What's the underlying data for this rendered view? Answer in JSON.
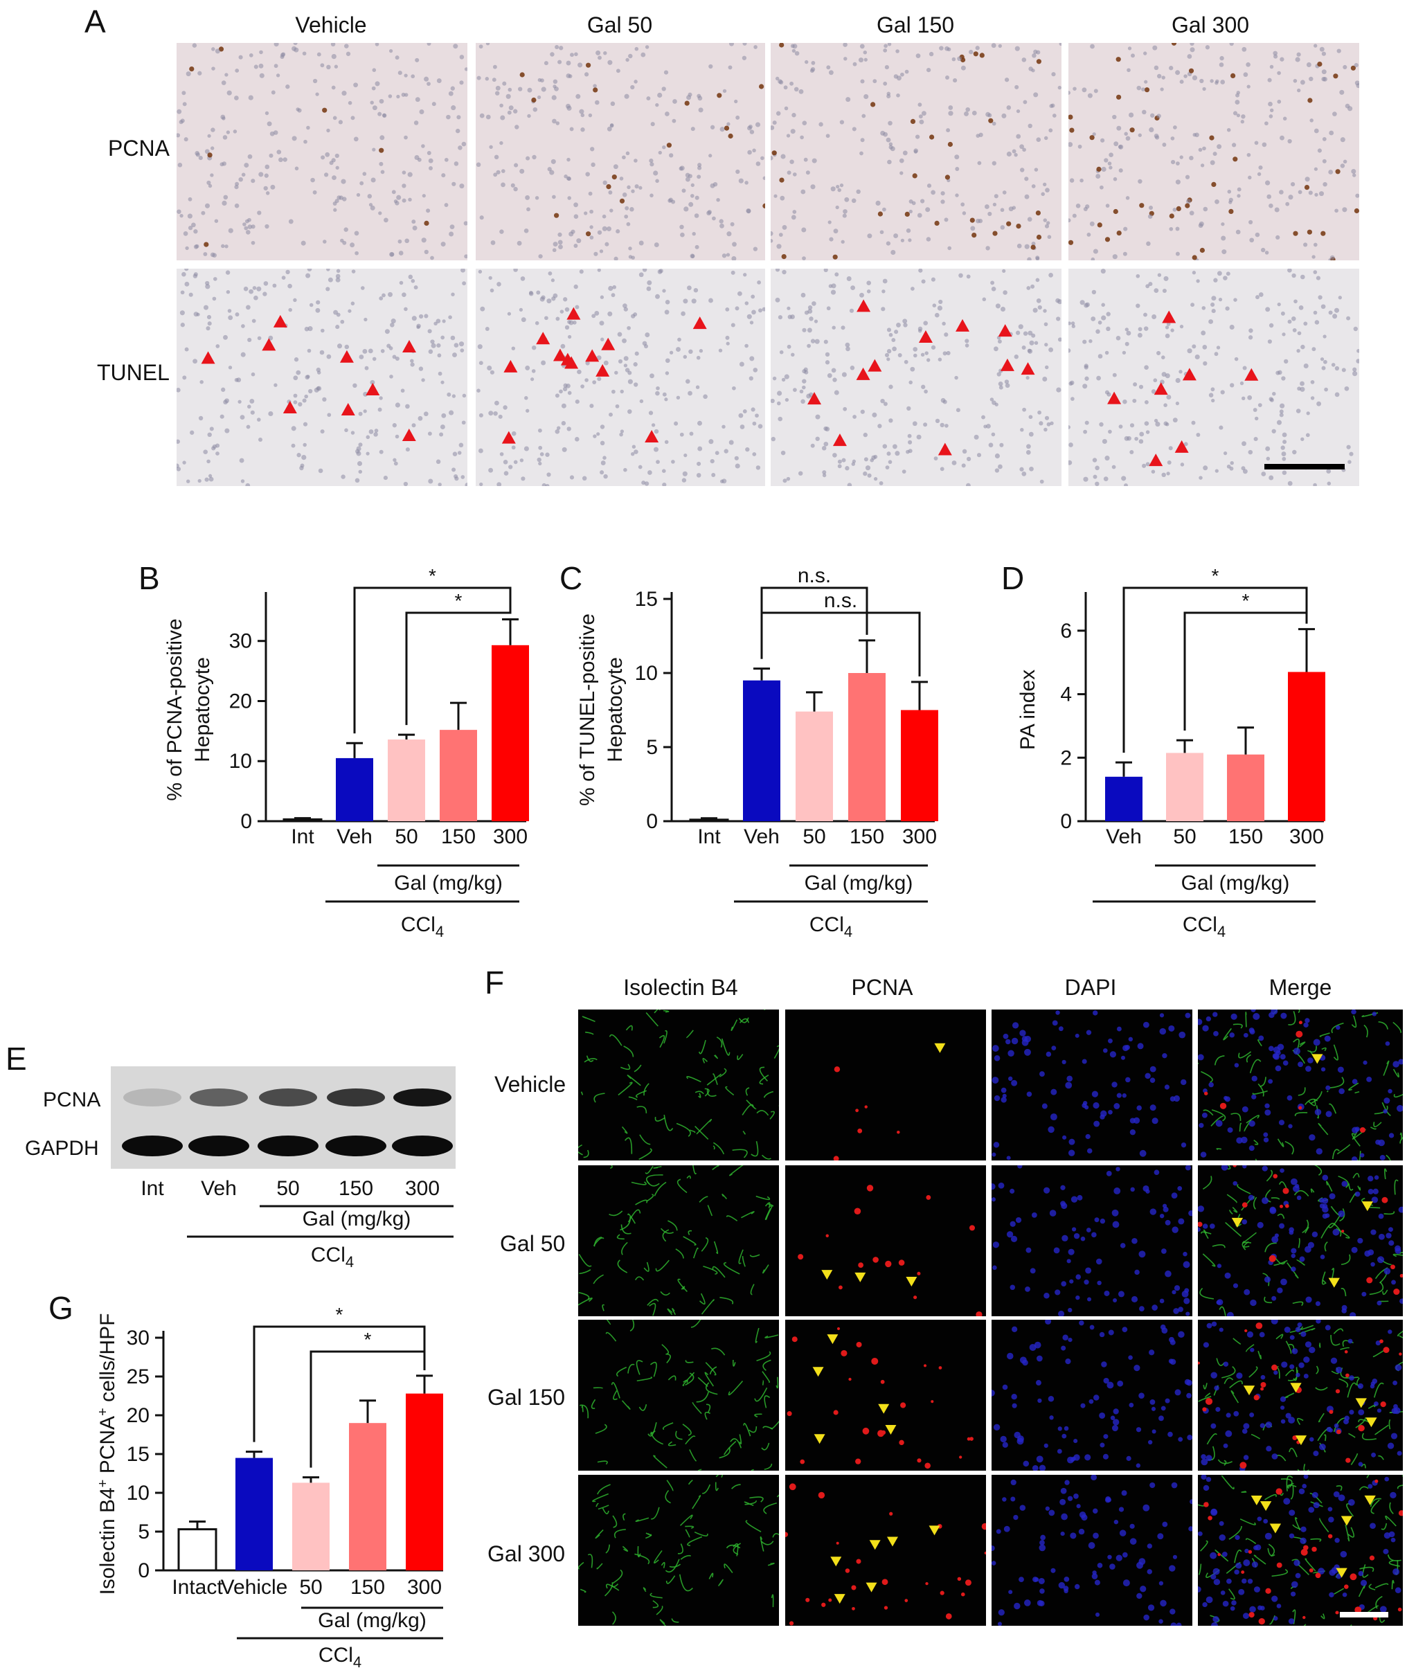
{
  "panel_letters": [
    "A",
    "B",
    "C",
    "D",
    "E",
    "F",
    "G"
  ],
  "panelA": {
    "columns": [
      "Vehicle",
      "Gal 50",
      "Gal 150",
      "Gal 300"
    ],
    "rows": [
      "PCNA",
      "TUNEL"
    ],
    "pcna_tile_color": "#e8dde0",
    "tunel_tile_color": "#e9e7ea",
    "arrow_color": "#e8141b"
  },
  "panelE": {
    "blot_rows": [
      "PCNA",
      "GAPDH"
    ],
    "lanes": [
      "Int",
      "Veh",
      "50",
      "150",
      "300"
    ],
    "pcna_band_intensity": [
      0.15,
      0.55,
      0.65,
      0.75,
      0.9
    ],
    "gapdh_band_intensity": [
      0.95,
      0.95,
      0.95,
      0.95,
      0.95
    ],
    "gal_label": "Gal (mg/kg)",
    "ccl4_main": "CCl",
    "ccl4_sub": "4"
  },
  "panelF": {
    "columns": [
      "Isolectin B4",
      "PCNA",
      "DAPI",
      "Merge"
    ],
    "rows": [
      "Vehicle",
      "Gal 50",
      "Gal 150",
      "Gal 300"
    ],
    "isolectin_color": "#2fb52f",
    "pcna_color": "#e01a1a",
    "dapi_color": "#2626c8",
    "arrow_color": "#f3e01a"
  },
  "colors": {
    "int": "#ffffff",
    "veh": "#0a0abf",
    "gal50": "#ffc2c2",
    "gal150": "#ff7373",
    "gal300": "#ff0000"
  },
  "chart_data": [
    {
      "panel": "B",
      "type": "bar",
      "ylabel_line1": "% of PCNA-positive",
      "ylabel_line2": "Hepatocyte",
      "ylim": [
        0,
        37
      ],
      "yticks": [
        0,
        10,
        20,
        30
      ],
      "categories": [
        "Int",
        "Veh",
        "50",
        "150",
        "300"
      ],
      "values": [
        0.3,
        10.5,
        13.6,
        15.2,
        29.3
      ],
      "errors": [
        0.2,
        2.5,
        0.8,
        4.5,
        4.3
      ],
      "gal_label": "Gal (mg/kg)",
      "ccl4_main": "CCl",
      "ccl4_sub": "4",
      "significance": [
        {
          "from": "Veh",
          "to": "300",
          "label": "*"
        },
        {
          "from": "50",
          "to": "300",
          "label": "*"
        }
      ]
    },
    {
      "panel": "C",
      "type": "bar",
      "ylabel_line1": "% of TUNEL-positive",
      "ylabel_line2": "Hepatocyte",
      "ylim": [
        0,
        15
      ],
      "yticks": [
        0,
        5,
        10,
        15
      ],
      "categories": [
        "Int",
        "Veh",
        "50",
        "150",
        "300"
      ],
      "values": [
        0.1,
        9.5,
        7.4,
        10.0,
        7.5
      ],
      "errors": [
        0.1,
        0.8,
        1.3,
        2.2,
        1.9
      ],
      "gal_label": "Gal (mg/kg)",
      "ccl4_main": "CCl",
      "ccl4_sub": "4",
      "significance": [
        {
          "from": "Veh",
          "to": "150",
          "label": "n.s."
        },
        {
          "from": "Veh",
          "to": "300",
          "label": "n.s."
        }
      ]
    },
    {
      "panel": "D",
      "type": "bar",
      "ylabel_line1": "PA index",
      "ylabel_line2": "",
      "ylim": [
        0,
        7
      ],
      "yticks": [
        0,
        2,
        4,
        6
      ],
      "categories": [
        "Veh",
        "50",
        "150",
        "300"
      ],
      "values": [
        1.4,
        2.15,
        2.1,
        4.7
      ],
      "errors": [
        0.45,
        0.4,
        0.85,
        1.35
      ],
      "gal_label": "Gal (mg/kg)",
      "ccl4_main": "CCl",
      "ccl4_sub": "4",
      "significance": [
        {
          "from": "Veh",
          "to": "300",
          "label": "*"
        },
        {
          "from": "50",
          "to": "300",
          "label": "*"
        }
      ]
    },
    {
      "panel": "G",
      "type": "bar",
      "ylabel_line1": "Isolectin B4",
      "ylabel_sup1": "+",
      "ylabel_mid": " PCNA",
      "ylabel_sup2": "+",
      "ylabel_end": " cells/HPF",
      "ylim": [
        0,
        30
      ],
      "yticks": [
        0,
        5,
        10,
        15,
        20,
        25,
        30
      ],
      "categories": [
        "Intact",
        "Vehicle",
        "50",
        "150",
        "300"
      ],
      "values": [
        5.3,
        14.5,
        11.3,
        19.0,
        22.8
      ],
      "errors": [
        1.0,
        0.8,
        0.7,
        2.9,
        2.3
      ],
      "gal_label": "Gal (mg/kg)",
      "ccl4_main": "CCl",
      "ccl4_sub": "4",
      "significance": [
        {
          "from": "Vehicle",
          "to": "300",
          "label": "*"
        },
        {
          "from": "50",
          "to": "300",
          "label": "*"
        }
      ]
    }
  ]
}
